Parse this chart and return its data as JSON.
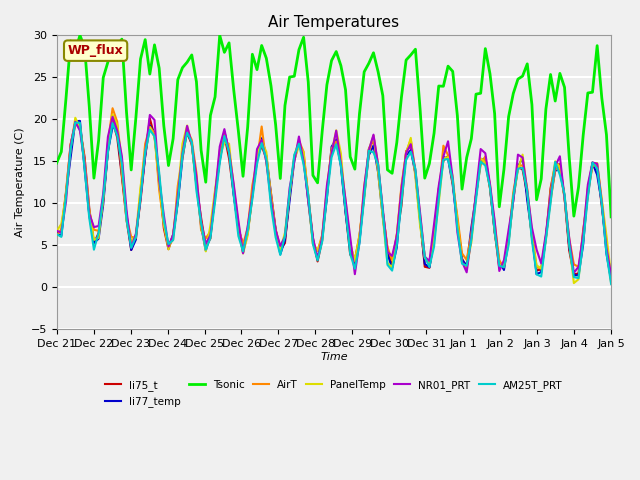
{
  "title": "Air Temperatures",
  "xlabel": "Time",
  "ylabel": "Air Temperature (C)",
  "ylim": [
    -5,
    30
  ],
  "yticks": [
    -5,
    0,
    5,
    10,
    15,
    20,
    25,
    30
  ],
  "series": {
    "li75_t": {
      "color": "#cc0000",
      "lw": 1.5
    },
    "li77_temp": {
      "color": "#0000cc",
      "lw": 1.5
    },
    "Tsonic": {
      "color": "#00ee00",
      "lw": 2.0
    },
    "AirT": {
      "color": "#ff8800",
      "lw": 1.5
    },
    "PanelTemp": {
      "color": "#dddd00",
      "lw": 1.5
    },
    "NR01_PRT": {
      "color": "#aa00cc",
      "lw": 1.5
    },
    "AM25T_PRT": {
      "color": "#00cccc",
      "lw": 1.5
    }
  },
  "legend_box": {
    "text": "WP_flux",
    "facecolor": "#ffffcc",
    "edgecolor": "#888800",
    "textcolor": "#aa0000"
  },
  "xticklabels": [
    "Dec 21",
    "Dec 22",
    "Dec 23",
    "Dec 24",
    "Dec 25",
    "Dec 26",
    "Dec 27",
    "Dec 28",
    "Dec 29",
    "Dec 30",
    "Dec 31",
    "Jan 1",
    "Jan 2",
    "Jan 3",
    "Jan 4",
    "Jan 5"
  ],
  "n_days": 15
}
